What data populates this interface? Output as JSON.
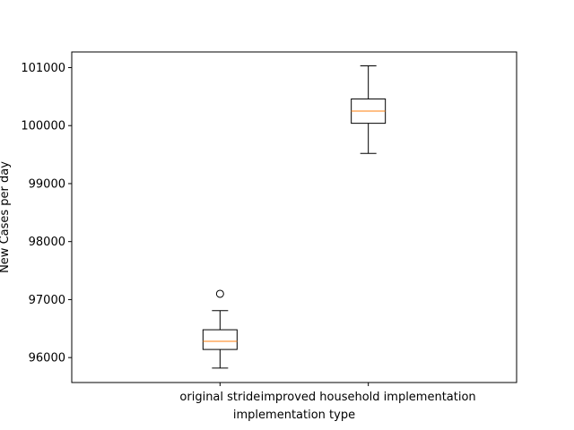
{
  "chart_data": {
    "type": "box",
    "title": "",
    "xlabel": "implementation type",
    "ylabel": "New Cases per day",
    "ylim": [
      95570,
      101270
    ],
    "yticks": [
      96000,
      97000,
      98000,
      99000,
      100000,
      101000
    ],
    "ytick_labels": [
      "96000",
      "97000",
      "98000",
      "99000",
      "100000",
      "101000"
    ],
    "categories": [
      "original stride",
      "improved household implementation"
    ],
    "boxes": [
      {
        "category": "original stride",
        "whisker_low": 95820,
        "q1": 96140,
        "median": 96280,
        "q3": 96480,
        "whisker_high": 96810,
        "outliers": [
          97100
        ]
      },
      {
        "category": "improved household implementation",
        "whisker_low": 99520,
        "q1": 100040,
        "median": 100250,
        "q3": 100460,
        "whisker_high": 101030,
        "outliers": []
      }
    ],
    "grid": false,
    "colors": {
      "box": "#000000",
      "median": "#ff7f0e",
      "outlier": "#000000"
    }
  }
}
